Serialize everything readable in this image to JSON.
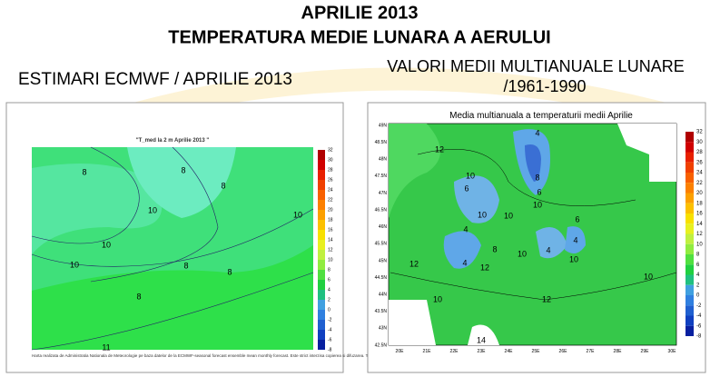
{
  "header": {
    "line1": "APRILIE 2013",
    "line2": "TEMPERATURA MEDIE LUNARA A AERULUI"
  },
  "left": {
    "heading": "ESTIMARI ECMWF / APRILIE 2013",
    "map_title": "\"T_med la 2 m Aprilie 2013 \"",
    "colorbar": [
      "32",
      "30",
      "28",
      "26",
      "24",
      "22",
      "20",
      "18",
      "16",
      "14",
      "12",
      "10",
      "8",
      "6",
      "4",
      "2",
      "0",
      "-2",
      "-4",
      "-6",
      "-8"
    ],
    "contour_labels": [
      "8",
      "8",
      "10",
      "10",
      "10",
      "8",
      "8",
      "8",
      "8",
      "10",
      "11"
    ],
    "footer": "Harta realizata de Administratia Nationala de Meteorologie pe baza datelor de la ECMWF-seasonal forecast ensemble mean monthly forecast. Este strict interzisa copierea si difuzarea. Toate drepturile rezervate."
  },
  "right": {
    "heading_line1": "VALORI MEDII MULTIANUALE LUNARE",
    "heading_line2": "/1961-1990",
    "map_title": "Media multianuala a temperaturii medii Aprilie",
    "lat_labels": [
      "49N",
      "48.5N",
      "48N",
      "47.5N",
      "47N",
      "46.5N",
      "46N",
      "45.5N",
      "45N",
      "44.5N",
      "44N",
      "43.5N",
      "43N",
      "42.5N"
    ],
    "lon_labels": [
      "20E",
      "21E",
      "22E",
      "23E",
      "24E",
      "25E",
      "26E",
      "27E",
      "28E",
      "29E",
      "30E"
    ],
    "colorbar": [
      "32",
      "30",
      "28",
      "26",
      "24",
      "22",
      "20",
      "18",
      "16",
      "14",
      "12",
      "10",
      "8",
      "6",
      "4",
      "2",
      "0",
      "-2",
      "-4",
      "-6",
      "-8"
    ],
    "contour_labels": [
      "12",
      "10",
      "10",
      "12",
      "10",
      "4",
      "6",
      "10",
      "10",
      "8",
      "6",
      "6",
      "4",
      "10",
      "4",
      "12",
      "10",
      "10",
      "12",
      "14",
      "4",
      "4",
      "8"
    ]
  }
}
